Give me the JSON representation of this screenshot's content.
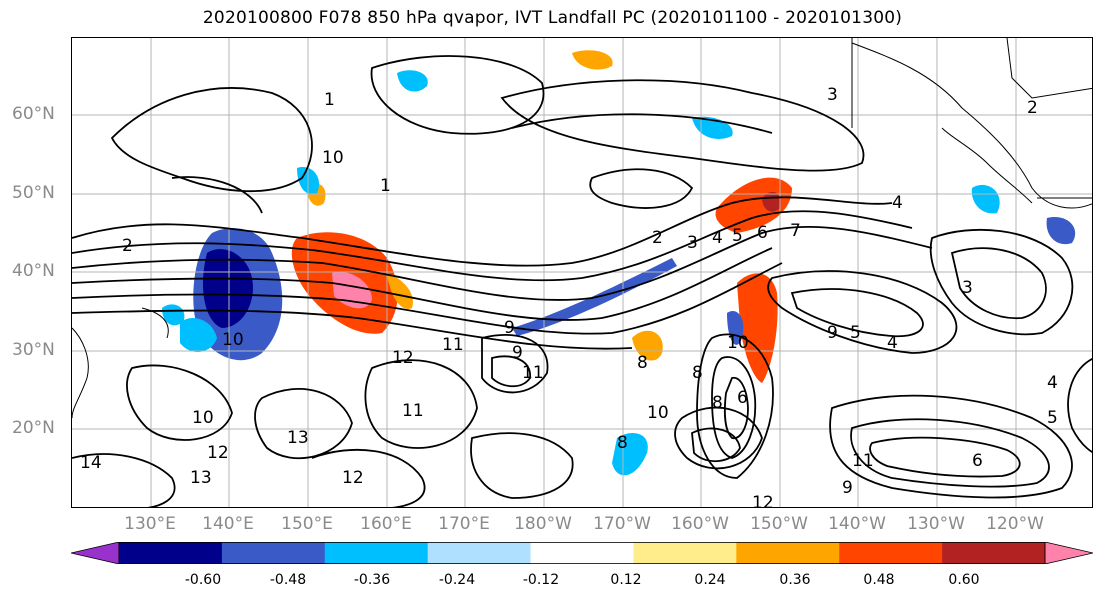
{
  "title": "2020100800 F078 850 hPa qvapor, IVT Landfall PC (2020101100 - 2020101300)",
  "map": {
    "lat_labels": [
      "60°N",
      "50°N",
      "40°N",
      "30°N",
      "20°N"
    ],
    "lon_labels": [
      "130°E",
      "140°E",
      "150°E",
      "160°E",
      "170°E",
      "180°W",
      "170°W",
      "160°W",
      "150°W",
      "140°W",
      "130°W",
      "120°W"
    ],
    "contour_labels": [
      "1",
      "1",
      "10",
      "3",
      "2",
      "4",
      "2",
      "3",
      "4",
      "5",
      "6",
      "7",
      "9",
      "12",
      "11",
      "11",
      "10",
      "10",
      "12",
      "13",
      "13",
      "12",
      "11",
      "9",
      "8",
      "8",
      "10",
      "9",
      "8",
      "6",
      "5",
      "4",
      "8",
      "10",
      "12",
      "9",
      "11",
      "6",
      "5",
      "4",
      "3",
      "2",
      "14"
    ]
  },
  "colorbar": {
    "labels": [
      "-0.60",
      "-0.48",
      "-0.36",
      "-0.24",
      "-0.12",
      "0.12",
      "0.24",
      "0.36",
      "0.48",
      "0.60"
    ],
    "colors": [
      "#9932cc",
      "#00008b",
      "#3a5bc7",
      "#00bfff",
      "#b0e0ff",
      "#ffffff",
      "#ffec8b",
      "#ffa500",
      "#ff4500",
      "#b22222",
      "#ff82ab"
    ]
  }
}
